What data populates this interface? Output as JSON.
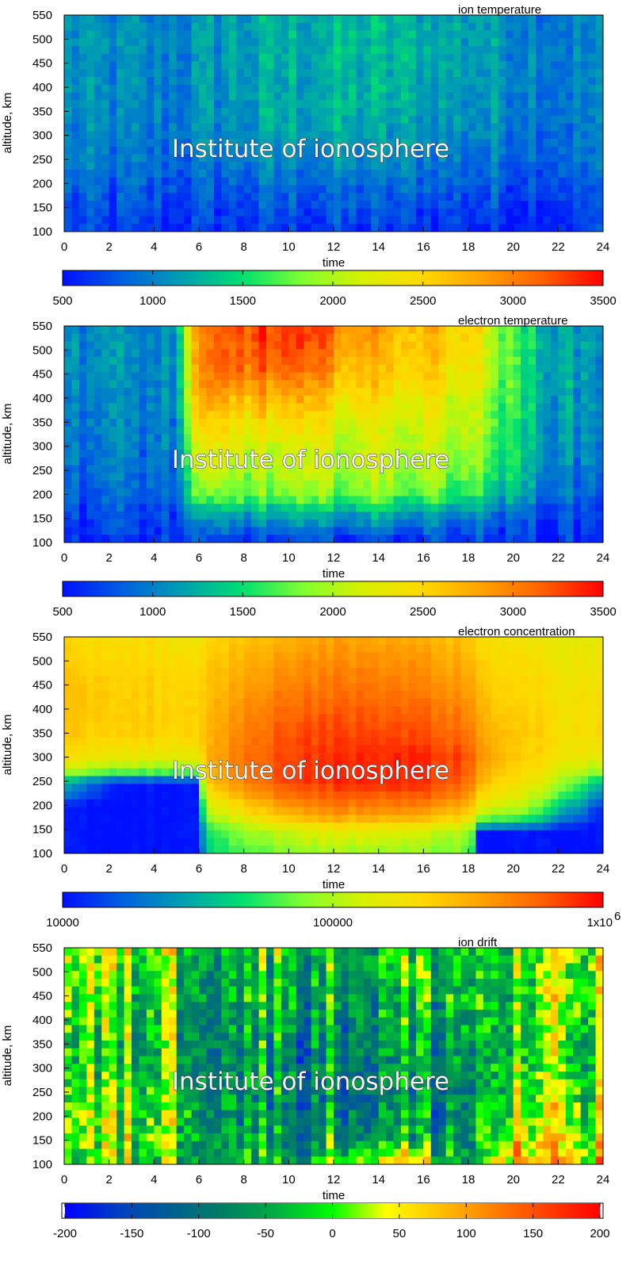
{
  "watermark": "Institute of ionosphere",
  "chart_data": [
    {
      "type": "heatmap",
      "title": "ion temperature",
      "xlabel": "time",
      "ylabel": "altitude, km",
      "xlim": [
        0,
        24
      ],
      "ylim": [
        100,
        550
      ],
      "xticks": [
        "0",
        "2",
        "4",
        "6",
        "8",
        "10",
        "12",
        "14",
        "16",
        "18",
        "20",
        "22",
        "24"
      ],
      "yticks": [
        "100",
        "150",
        "200",
        "250",
        "300",
        "350",
        "400",
        "450",
        "500",
        "550"
      ],
      "colorbar": {
        "range": [
          500,
          3500
        ],
        "scale": "linear",
        "ticks": [
          "500",
          "1000",
          "1500",
          "2000",
          "2500",
          "3000",
          "3500"
        ],
        "colors": [
          "#0010ff",
          "#0060e0",
          "#00a0b0",
          "#00e070",
          "#80ff30",
          "#d8f000",
          "#ffd800",
          "#ffa000",
          "#ff6000",
          "#ff0000"
        ]
      },
      "x": [
        0,
        2,
        4,
        6,
        8,
        10,
        12,
        14,
        16,
        18,
        20,
        22,
        24
      ],
      "y": [
        100,
        150,
        200,
        250,
        300,
        350,
        400,
        450,
        500,
        550
      ],
      "z": [
        [
          650,
          650,
          640,
          640,
          650,
          660,
          660,
          660,
          650,
          650,
          640,
          640,
          640
        ],
        [
          740,
          700,
          700,
          700,
          740,
          760,
          760,
          760,
          750,
          720,
          700,
          700,
          700
        ],
        [
          850,
          800,
          800,
          800,
          850,
          900,
          900,
          900,
          880,
          850,
          800,
          790,
          800
        ],
        [
          950,
          900,
          900,
          900,
          1000,
          1050,
          1050,
          1050,
          1000,
          950,
          900,
          900,
          900
        ],
        [
          1000,
          960,
          950,
          1000,
          1100,
          1150,
          1200,
          1150,
          1100,
          1050,
          1000,
          950,
          950
        ],
        [
          1050,
          1000,
          980,
          1050,
          1150,
          1200,
          1250,
          1220,
          1180,
          1120,
          1050,
          980,
          980
        ],
        [
          1080,
          1020,
          1000,
          1060,
          1160,
          1220,
          1250,
          1250,
          1200,
          1150,
          1080,
          1000,
          1000
        ],
        [
          1100,
          1030,
          1000,
          1070,
          1170,
          1230,
          1260,
          1260,
          1220,
          1170,
          1100,
          1000,
          1000
        ],
        [
          1100,
          1030,
          1000,
          1070,
          1180,
          1240,
          1270,
          1270,
          1230,
          1180,
          1100,
          1000,
          1000
        ],
        [
          1100,
          1020,
          980,
          1060,
          1180,
          1250,
          1280,
          1280,
          1240,
          1200,
          1100,
          980,
          1000
        ]
      ]
    },
    {
      "type": "heatmap",
      "title": "electron temperature",
      "xlabel": "time",
      "ylabel": "altitude, km",
      "xlim": [
        0,
        24
      ],
      "ylim": [
        100,
        550
      ],
      "xticks": [
        "0",
        "2",
        "4",
        "6",
        "8",
        "10",
        "12",
        "14",
        "16",
        "18",
        "20",
        "22",
        "24"
      ],
      "yticks": [
        "100",
        "150",
        "200",
        "250",
        "300",
        "350",
        "400",
        "450",
        "500",
        "550"
      ],
      "colorbar": {
        "range": [
          500,
          3500
        ],
        "scale": "linear",
        "ticks": [
          "500",
          "1000",
          "1500",
          "2000",
          "2500",
          "3000",
          "3500"
        ],
        "colors": [
          "#0010ff",
          "#0060e0",
          "#00a0b0",
          "#00e070",
          "#80ff30",
          "#d8f000",
          "#ffd800",
          "#ffa000",
          "#ff6000",
          "#ff0000"
        ]
      },
      "x": [
        0,
        2,
        4,
        5,
        6,
        8,
        10,
        12,
        14,
        16,
        18,
        20,
        22,
        24
      ],
      "y": [
        100,
        150,
        200,
        250,
        300,
        350,
        400,
        450,
        500,
        550
      ],
      "z": [
        [
          600,
          600,
          600,
          600,
          650,
          650,
          650,
          650,
          650,
          650,
          650,
          600,
          600,
          600
        ],
        [
          700,
          700,
          700,
          700,
          1000,
          1100,
          1100,
          1100,
          1100,
          1050,
          1000,
          800,
          700,
          700
        ],
        [
          850,
          850,
          850,
          850,
          1700,
          1800,
          1800,
          1800,
          1800,
          1750,
          1650,
          1200,
          900,
          850
        ],
        [
          950,
          900,
          900,
          920,
          2000,
          2000,
          2000,
          2050,
          2050,
          2000,
          1900,
          1400,
          1000,
          950
        ],
        [
          1000,
          950,
          950,
          980,
          2200,
          2200,
          2100,
          2100,
          2100,
          2100,
          2000,
          1450,
          1050,
          1000
        ],
        [
          1000,
          1000,
          950,
          1000,
          2500,
          2450,
          2400,
          2300,
          2200,
          2200,
          2100,
          1500,
          1100,
          1050
        ],
        [
          1050,
          1000,
          1000,
          1050,
          2700,
          2700,
          2700,
          2500,
          2400,
          2300,
          2200,
          1550,
          1150,
          1100
        ],
        [
          1100,
          1050,
          1000,
          1100,
          2900,
          3100,
          3000,
          2800,
          2600,
          2500,
          2400,
          1600,
          1200,
          1100
        ],
        [
          1100,
          1050,
          1000,
          1100,
          2900,
          3200,
          3200,
          3000,
          2700,
          2600,
          2500,
          1600,
          1200,
          1100
        ],
        [
          1100,
          1050,
          1000,
          1150,
          2900,
          3300,
          3300,
          3100,
          2800,
          2700,
          2600,
          1600,
          1200,
          1150
        ]
      ]
    },
    {
      "type": "heatmap",
      "title": "electron concentration",
      "xlabel": "time",
      "ylabel": "altitude, km",
      "xlim": [
        0,
        24
      ],
      "ylim": [
        100,
        550
      ],
      "xticks": [
        "0",
        "2",
        "4",
        "6",
        "8",
        "10",
        "12",
        "14",
        "16",
        "18",
        "20",
        "22",
        "24"
      ],
      "yticks": [
        "100",
        "150",
        "200",
        "250",
        "300",
        "350",
        "400",
        "450",
        "500",
        "550"
      ],
      "colorbar": {
        "range": [
          10000,
          1000000
        ],
        "scale": "log",
        "ticks": [
          "10000",
          "100000",
          "1x10"
        ],
        "tick_superscript": "6",
        "colors": [
          "#0010ff",
          "#0060e0",
          "#00a0b0",
          "#00e070",
          "#80ff30",
          "#d8f000",
          "#ffd800",
          "#ffa000",
          "#ff6000",
          "#ff0000"
        ]
      },
      "x": [
        0,
        2,
        4,
        6,
        6.5,
        8,
        10,
        12,
        14,
        16,
        18,
        18.5,
        20,
        22,
        24
      ],
      "y": [
        100,
        150,
        200,
        250,
        300,
        350,
        400,
        450,
        500,
        550
      ],
      "z": [
        [
          10000,
          10000,
          10000,
          10000,
          40000,
          60000,
          80000,
          90000,
          90000,
          80000,
          70000,
          10000,
          10000,
          10000,
          10000
        ],
        [
          10000,
          10000,
          10000,
          10000,
          50000,
          90000,
          120000,
          150000,
          150000,
          130000,
          100000,
          10000,
          10000,
          10000,
          10000
        ],
        [
          10000,
          10000,
          10000,
          10000,
          120000,
          220000,
          400000,
          500000,
          500000,
          450000,
          300000,
          150000,
          120000,
          40000,
          10000
        ],
        [
          30000,
          12000,
          10000,
          10000,
          250000,
          450000,
          700000,
          800000,
          850000,
          800000,
          550000,
          300000,
          200000,
          100000,
          30000
        ],
        [
          180000,
          160000,
          150000,
          140000,
          300000,
          500000,
          700000,
          800000,
          850000,
          800000,
          650000,
          400000,
          250000,
          180000,
          150000
        ],
        [
          240000,
          240000,
          230000,
          210000,
          300000,
          450000,
          650000,
          700000,
          700000,
          650000,
          520000,
          350000,
          250000,
          200000,
          200000
        ],
        [
          250000,
          250000,
          230000,
          210000,
          280000,
          400000,
          550000,
          600000,
          600000,
          550000,
          420000,
          300000,
          230000,
          190000,
          190000
        ],
        [
          250000,
          240000,
          230000,
          200000,
          260000,
          350000,
          450000,
          500000,
          500000,
          450000,
          350000,
          260000,
          220000,
          180000,
          180000
        ],
        [
          220000,
          220000,
          210000,
          180000,
          240000,
          300000,
          380000,
          420000,
          420000,
          380000,
          300000,
          230000,
          200000,
          170000,
          170000
        ],
        [
          200000,
          200000,
          200000,
          150000,
          220000,
          250000,
          300000,
          350000,
          350000,
          300000,
          250000,
          200000,
          180000,
          150000,
          160000
        ]
      ]
    },
    {
      "type": "heatmap",
      "title": "ion drift",
      "xlabel": "time",
      "ylabel": "altitude, km",
      "xlim": [
        0,
        24
      ],
      "ylim": [
        100,
        550
      ],
      "xticks": [
        "0",
        "2",
        "4",
        "6",
        "8",
        "10",
        "12",
        "14",
        "16",
        "18",
        "20",
        "22",
        "24"
      ],
      "yticks": [
        "100",
        "150",
        "200",
        "250",
        "300",
        "350",
        "400",
        "450",
        "500",
        "550"
      ],
      "colorbar": {
        "range": [
          -200,
          200
        ],
        "scale": "linear",
        "ticks": [
          "-200",
          "-150",
          "-100",
          "-50",
          "0",
          "50",
          "100",
          "150",
          "200"
        ],
        "colors": [
          "#0000ff",
          "#0040c0",
          "#006090",
          "#008060",
          "#00b040",
          "#00ff00",
          "#ffff00",
          "#ffc000",
          "#ff8000",
          "#ff4000",
          "#ff0000"
        ]
      },
      "x": [
        0,
        2,
        4,
        6,
        8,
        10,
        12,
        14,
        16,
        18,
        20,
        22,
        24
      ],
      "y": [
        100,
        150,
        200,
        250,
        300,
        350,
        400,
        450,
        500,
        550
      ],
      "z": [
        [
          -20,
          -10,
          0,
          -20,
          -40,
          -30,
          20,
          60,
          40,
          -40,
          80,
          60,
          70
        ],
        [
          10,
          0,
          20,
          0,
          -50,
          -60,
          -60,
          -50,
          -60,
          -70,
          50,
          20,
          30
        ],
        [
          20,
          0,
          20,
          -10,
          -60,
          -70,
          -80,
          -70,
          -70,
          -70,
          20,
          10,
          20
        ],
        [
          0,
          -20,
          10,
          -20,
          -60,
          -70,
          -80,
          -80,
          -80,
          -70,
          -10,
          -10,
          0
        ],
        [
          -10,
          -30,
          -10,
          -30,
          -60,
          -70,
          -70,
          -80,
          -70,
          -60,
          -20,
          -20,
          -10
        ],
        [
          -10,
          -30,
          -10,
          -30,
          -50,
          -60,
          -70,
          -70,
          -60,
          -50,
          -30,
          -20,
          -10
        ],
        [
          0,
          -20,
          0,
          -30,
          -50,
          -50,
          -60,
          -60,
          -50,
          -40,
          -30,
          -10,
          0
        ],
        [
          10,
          -10,
          10,
          -20,
          -40,
          -40,
          -50,
          -50,
          -40,
          -30,
          -30,
          0,
          10
        ],
        [
          20,
          0,
          20,
          -10,
          -30,
          -30,
          -40,
          -40,
          -30,
          -30,
          -30,
          10,
          20
        ],
        [
          30,
          10,
          30,
          0,
          -20,
          -20,
          -30,
          -30,
          -30,
          -30,
          -30,
          20,
          20
        ]
      ]
    }
  ]
}
